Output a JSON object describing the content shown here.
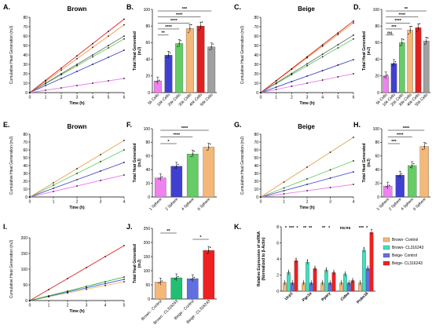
{
  "chart_data": [
    {
      "id": "A",
      "panel": "A.",
      "title": "Brown",
      "type": "line",
      "xlabel": "Time (h)",
      "ylabel": "Cumulative Heat Generation (mJ)",
      "xlim": [
        0,
        6
      ],
      "ylim": [
        0,
        80
      ],
      "xticks": [
        0,
        1,
        2,
        3,
        4,
        5,
        6
      ],
      "yticks": [
        0,
        10,
        20,
        30,
        40,
        50,
        60,
        70,
        80
      ],
      "x": [
        0,
        1,
        2,
        3,
        4,
        5,
        6
      ],
      "series": [
        {
          "color": "#ee82ee",
          "values": [
            0,
            2.5,
            5,
            7.5,
            10,
            12.5,
            15
          ]
        },
        {
          "color": "#4040d0",
          "values": [
            0,
            7.5,
            15,
            22.5,
            30,
            37.5,
            45
          ]
        },
        {
          "color": "#66cc66",
          "values": [
            0,
            9.5,
            19,
            28.5,
            38,
            47.5,
            57
          ]
        },
        {
          "color": "#e6a050",
          "values": [
            0,
            12,
            24,
            36,
            48,
            60,
            72
          ]
        },
        {
          "color": "#e02020",
          "values": [
            0,
            13,
            26,
            39,
            52,
            65,
            78
          ]
        },
        {
          "color": "#707070",
          "values": [
            0,
            10,
            20,
            30,
            40,
            50,
            60
          ]
        }
      ]
    },
    {
      "id": "B",
      "panel": "B.",
      "type": "bar",
      "ylabel": "Total Heat Generated (mJ)",
      "ylim": [
        0,
        100
      ],
      "yticks": [
        0,
        20,
        40,
        60,
        80,
        100
      ],
      "categories": [
        "5k Cells",
        "10k Cells",
        "20k Cells",
        "30k Cells",
        "40k Cells",
        "50k Cells"
      ],
      "values": [
        14,
        45,
        59,
        77,
        80,
        55
      ],
      "colors": [
        "#ee82ee",
        "#4040d0",
        "#66cc66",
        "#f4b878",
        "#e02020",
        "#a0a0a0"
      ],
      "significance": [
        {
          "from": 0,
          "to": 1,
          "label": "**"
        },
        {
          "from": 0,
          "to": 2,
          "label": "****"
        },
        {
          "from": 0,
          "to": 3,
          "label": "****"
        },
        {
          "from": 0,
          "to": 4,
          "label": "****"
        },
        {
          "from": 0,
          "to": 5,
          "label": "***"
        }
      ]
    },
    {
      "id": "C",
      "panel": "C.",
      "title": "Beige",
      "type": "line",
      "xlabel": "Time (h)",
      "ylabel": "Cumulative Heat Generation (mJ)",
      "xlim": [
        0,
        6
      ],
      "ylim": [
        0,
        80
      ],
      "xticks": [
        0,
        1,
        2,
        3,
        4,
        5,
        6
      ],
      "yticks": [
        0,
        10,
        20,
        30,
        40,
        50,
        60,
        70,
        80
      ],
      "x": [
        0,
        1,
        2,
        3,
        4,
        5,
        6
      ],
      "series": [
        {
          "color": "#ee82ee",
          "values": [
            0,
            3.3,
            6.7,
            10,
            13.3,
            16.7,
            20
          ]
        },
        {
          "color": "#4040d0",
          "values": [
            0,
            5.8,
            11.7,
            17.5,
            23.3,
            29.2,
            35
          ]
        },
        {
          "color": "#66cc66",
          "values": [
            0,
            9.5,
            19,
            28.5,
            38,
            47.5,
            57
          ]
        },
        {
          "color": "#e6a050",
          "values": [
            0,
            12.3,
            24.7,
            37,
            49.3,
            61.7,
            74
          ]
        },
        {
          "color": "#e02020",
          "values": [
            0,
            12.7,
            25.3,
            38,
            50.7,
            63.3,
            76
          ]
        },
        {
          "color": "#707070",
          "values": [
            0,
            10.2,
            20.3,
            30.5,
            40.7,
            50.8,
            61
          ]
        }
      ]
    },
    {
      "id": "D",
      "panel": "D.",
      "type": "bar",
      "ylabel": "Total Heat Generated (mJ)",
      "ylim": [
        0,
        100
      ],
      "yticks": [
        0,
        20,
        40,
        60,
        80,
        100
      ],
      "categories": [
        "5k Cells",
        "10k Cells",
        "20k Cells",
        "30k Cells",
        "40k Cells",
        "50k Cells"
      ],
      "values": [
        20,
        35,
        60,
        75,
        78,
        62
      ],
      "colors": [
        "#ee82ee",
        "#4040d0",
        "#66cc66",
        "#f4b878",
        "#e02020",
        "#a0a0a0"
      ],
      "significance": [
        {
          "from": 0,
          "to": 1,
          "label": "ns"
        },
        {
          "from": 0,
          "to": 2,
          "label": "***"
        },
        {
          "from": 0,
          "to": 3,
          "label": "****"
        },
        {
          "from": 0,
          "to": 4,
          "label": "****"
        },
        {
          "from": 0,
          "to": 5,
          "label": "**"
        }
      ]
    },
    {
      "id": "E",
      "panel": "E.",
      "title": "Brown",
      "type": "line",
      "xlabel": "Time (h)",
      "ylabel": "Cumulative Heat Generation (mJ)",
      "xlim": [
        0,
        4
      ],
      "ylim": [
        0,
        80
      ],
      "xticks": [
        0,
        1,
        2,
        3,
        4
      ],
      "yticks": [
        0,
        10,
        20,
        30,
        40,
        50,
        60,
        70,
        80
      ],
      "x": [
        0,
        1,
        2,
        3,
        4
      ],
      "series": [
        {
          "color": "#ee82ee",
          "values": [
            0,
            7,
            14,
            21,
            28
          ]
        },
        {
          "color": "#4040d0",
          "values": [
            0,
            11,
            22,
            33,
            44
          ]
        },
        {
          "color": "#66cc66",
          "values": [
            0,
            15,
            30,
            45,
            60
          ]
        },
        {
          "color": "#e6a050",
          "values": [
            0,
            18,
            36,
            54,
            72
          ]
        }
      ]
    },
    {
      "id": "F",
      "panel": "F.",
      "type": "bar",
      "ylabel": "Total Heat Generated (mJ)",
      "ylim": [
        0,
        100
      ],
      "yticks": [
        0,
        20,
        40,
        60,
        80,
        100
      ],
      "categories": [
        "1 Sphere",
        "2 Sphere",
        "4 Sphere",
        "6 Sphere"
      ],
      "values": [
        28,
        45,
        63,
        73
      ],
      "colors": [
        "#ee82ee",
        "#4040d0",
        "#66cc66",
        "#f4b878"
      ],
      "significance": [
        {
          "from": 0,
          "to": 1,
          "label": "*"
        },
        {
          "from": 0,
          "to": 2,
          "label": "****"
        },
        {
          "from": 0,
          "to": 3,
          "label": "****"
        }
      ]
    },
    {
      "id": "G",
      "panel": "G.",
      "title": "Beige",
      "type": "line",
      "xlabel": "Time (h)",
      "ylabel": "Cumulative Heat Generation (mJ)",
      "xlim": [
        0,
        4
      ],
      "ylim": [
        0,
        80
      ],
      "xticks": [
        0,
        1,
        2,
        3,
        4
      ],
      "yticks": [
        0,
        10,
        20,
        30,
        40,
        50,
        60,
        70,
        80
      ],
      "x": [
        0,
        1,
        2,
        3,
        4
      ],
      "series": [
        {
          "color": "#ee82ee",
          "values": [
            0,
            4,
            8,
            12,
            16
          ]
        },
        {
          "color": "#4040d0",
          "values": [
            0,
            8,
            16,
            24,
            32
          ]
        },
        {
          "color": "#66cc66",
          "values": [
            0,
            11.5,
            23,
            34.5,
            46
          ]
        },
        {
          "color": "#e6a050",
          "values": [
            0,
            19,
            38,
            57,
            76
          ]
        }
      ]
    },
    {
      "id": "H",
      "panel": "H.",
      "type": "bar",
      "ylabel": "Total Heat Generated (mJ)",
      "ylim": [
        0,
        100
      ],
      "yticks": [
        0,
        20,
        40,
        60,
        80,
        100
      ],
      "categories": [
        "1 Sphere",
        "2 Sphere",
        "4 Sphere",
        "6 Sphere"
      ],
      "values": [
        16,
        32,
        46,
        74
      ],
      "colors": [
        "#ee82ee",
        "#4040d0",
        "#66cc66",
        "#f4b878"
      ],
      "significance": [
        {
          "from": 0,
          "to": 1,
          "label": "***"
        },
        {
          "from": 0,
          "to": 2,
          "label": "****"
        },
        {
          "from": 0,
          "to": 3,
          "label": "****"
        }
      ]
    },
    {
      "id": "I",
      "panel": "I.",
      "type": "line",
      "xlabel": "Time (h)",
      "ylabel": "Cumulative Heat Generation (mJ)",
      "xlim": [
        0,
        5
      ],
      "ylim": [
        0,
        200
      ],
      "xticks": [
        0,
        1,
        2,
        3,
        4,
        5
      ],
      "yticks": [
        0,
        50,
        100,
        150,
        200
      ],
      "x": [
        0,
        1,
        2,
        3,
        4,
        5
      ],
      "series": [
        {
          "color": "#f4b878",
          "values": [
            0,
            12,
            24,
            36,
            48,
            60
          ]
        },
        {
          "color": "#4060e0",
          "values": [
            0,
            13.5,
            27,
            40.5,
            54,
            67.5
          ]
        },
        {
          "color": "#20b020",
          "values": [
            0,
            15,
            30,
            45,
            60,
            75
          ]
        },
        {
          "color": "#e02020",
          "values": [
            0,
            35,
            70,
            105,
            140,
            175
          ]
        }
      ]
    },
    {
      "id": "J",
      "panel": "J.",
      "type": "bar",
      "ylabel": "Total Heat Generated (mJ)",
      "ylim": [
        0,
        250
      ],
      "yticks": [
        0,
        50,
        100,
        150,
        200,
        250
      ],
      "categories": [
        "Brown - Control",
        "Brown - CL316243",
        "Beige - Control",
        "Beige - CL316243"
      ],
      "values": [
        60,
        75,
        72,
        172
      ],
      "colors": [
        "#f4b878",
        "#20c070",
        "#6070e0",
        "#ee2020"
      ],
      "significance": [
        {
          "from": 0,
          "to": 1,
          "label": "**"
        },
        {
          "from": 2,
          "to": 3,
          "label": "*"
        }
      ]
    },
    {
      "id": "K",
      "panel": "K.",
      "type": "bar",
      "ylabel": "Relative Expression of mRNA (Normalized to β-Actin)",
      "ylim": [
        0,
        8
      ],
      "yticks": [
        0,
        2,
        4,
        6,
        8
      ],
      "categories": [
        "Ucp1",
        "Pgc1a",
        "Ppary",
        "Cidea",
        "Prdm16"
      ],
      "series": [
        {
          "name": "Brown- Control",
          "color": "#f4b878",
          "values": [
            1,
            1,
            1,
            1,
            1
          ]
        },
        {
          "name": "Brown- CL316243",
          "color": "#40e0c0",
          "values": [
            2.3,
            3.6,
            2.6,
            2.1,
            5.1
          ]
        },
        {
          "name": "Beige- Control",
          "color": "#6070e0",
          "values": [
            1,
            1,
            1,
            1,
            2.8
          ]
        },
        {
          "name": "Beige- CL316243",
          "color": "#ee2020",
          "values": [
            3.8,
            2.8,
            2.3,
            1.3,
            7.3
          ]
        }
      ],
      "significance": [
        {
          "cat": 0,
          "labels": [
            "*",
            "***",
            "*"
          ]
        },
        {
          "cat": 1,
          "labels": [
            "**",
            "**"
          ]
        },
        {
          "cat": 2,
          "labels": [
            "**",
            "*"
          ]
        },
        {
          "cat": 3,
          "labels": [
            "ns",
            "ns"
          ]
        },
        {
          "cat": 4,
          "labels": [
            "***",
            "*"
          ]
        }
      ]
    }
  ]
}
